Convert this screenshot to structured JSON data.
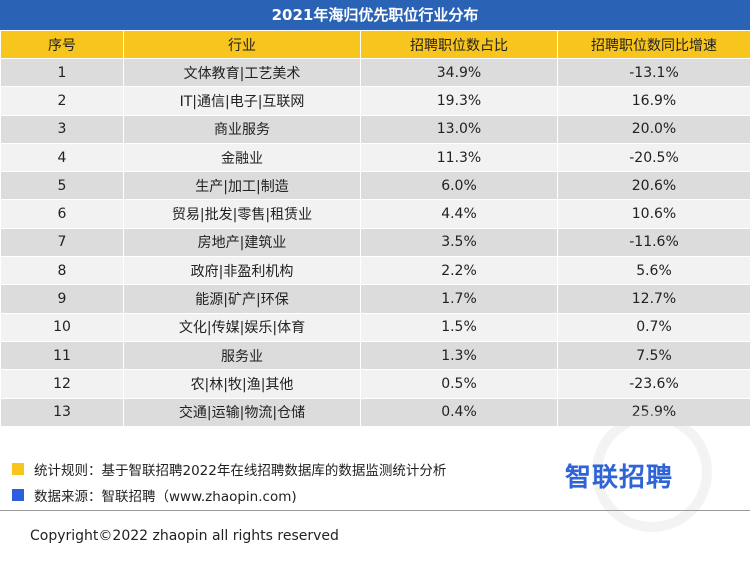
{
  "title": "2021年海归优先职位行业分布",
  "headers": [
    "序号",
    "行业",
    "招聘职位数占比",
    "招聘职位数同比增速"
  ],
  "rows": [
    [
      "1",
      "文体教育|工艺美术",
      "34.9%",
      "-13.1%"
    ],
    [
      "2",
      "IT|通信|电子|互联网",
      "19.3%",
      "16.9%"
    ],
    [
      "3",
      "商业服务",
      "13.0%",
      "20.0%"
    ],
    [
      "4",
      "金融业",
      "11.3%",
      "-20.5%"
    ],
    [
      "5",
      "生产|加工|制造",
      "6.0%",
      "20.6%"
    ],
    [
      "6",
      "贸易|批发|零售|租赁业",
      "4.4%",
      "10.6%"
    ],
    [
      "7",
      "房地产|建筑业",
      "3.5%",
      "-11.6%"
    ],
    [
      "8",
      "政府|非盈利机构",
      "2.2%",
      "5.6%"
    ],
    [
      "9",
      "能源|矿产|环保",
      "1.7%",
      "12.7%"
    ],
    [
      "10",
      "文化|传媒|娱乐|体育",
      "1.5%",
      "0.7%"
    ],
    [
      "11",
      "服务业",
      "1.3%",
      "7.5%"
    ],
    [
      "12",
      "农|林|牧|渔|其他",
      "0.5%",
      "-23.6%"
    ],
    [
      "13",
      "交通|运输|物流|仓储",
      "0.4%",
      "25.9%"
    ]
  ],
  "notes": {
    "rule": "统计规则：基于智联招聘2022年在线招聘数据库的数据监测统计分析",
    "source": "数据来源：智联招聘（www.zhaopin.com)"
  },
  "logo_text": "智联招聘",
  "copyright": "Copyright©2022 zhaopin all rights reserved",
  "colors": {
    "title_bg": "#2a63b5",
    "header_bg": "#f7c51e",
    "row_odd": "#dcdcdc",
    "row_even": "#f2f2f2",
    "note_yellow": "#f7c51e",
    "note_blue": "#2f5de0",
    "logo": "#2f64d6"
  }
}
